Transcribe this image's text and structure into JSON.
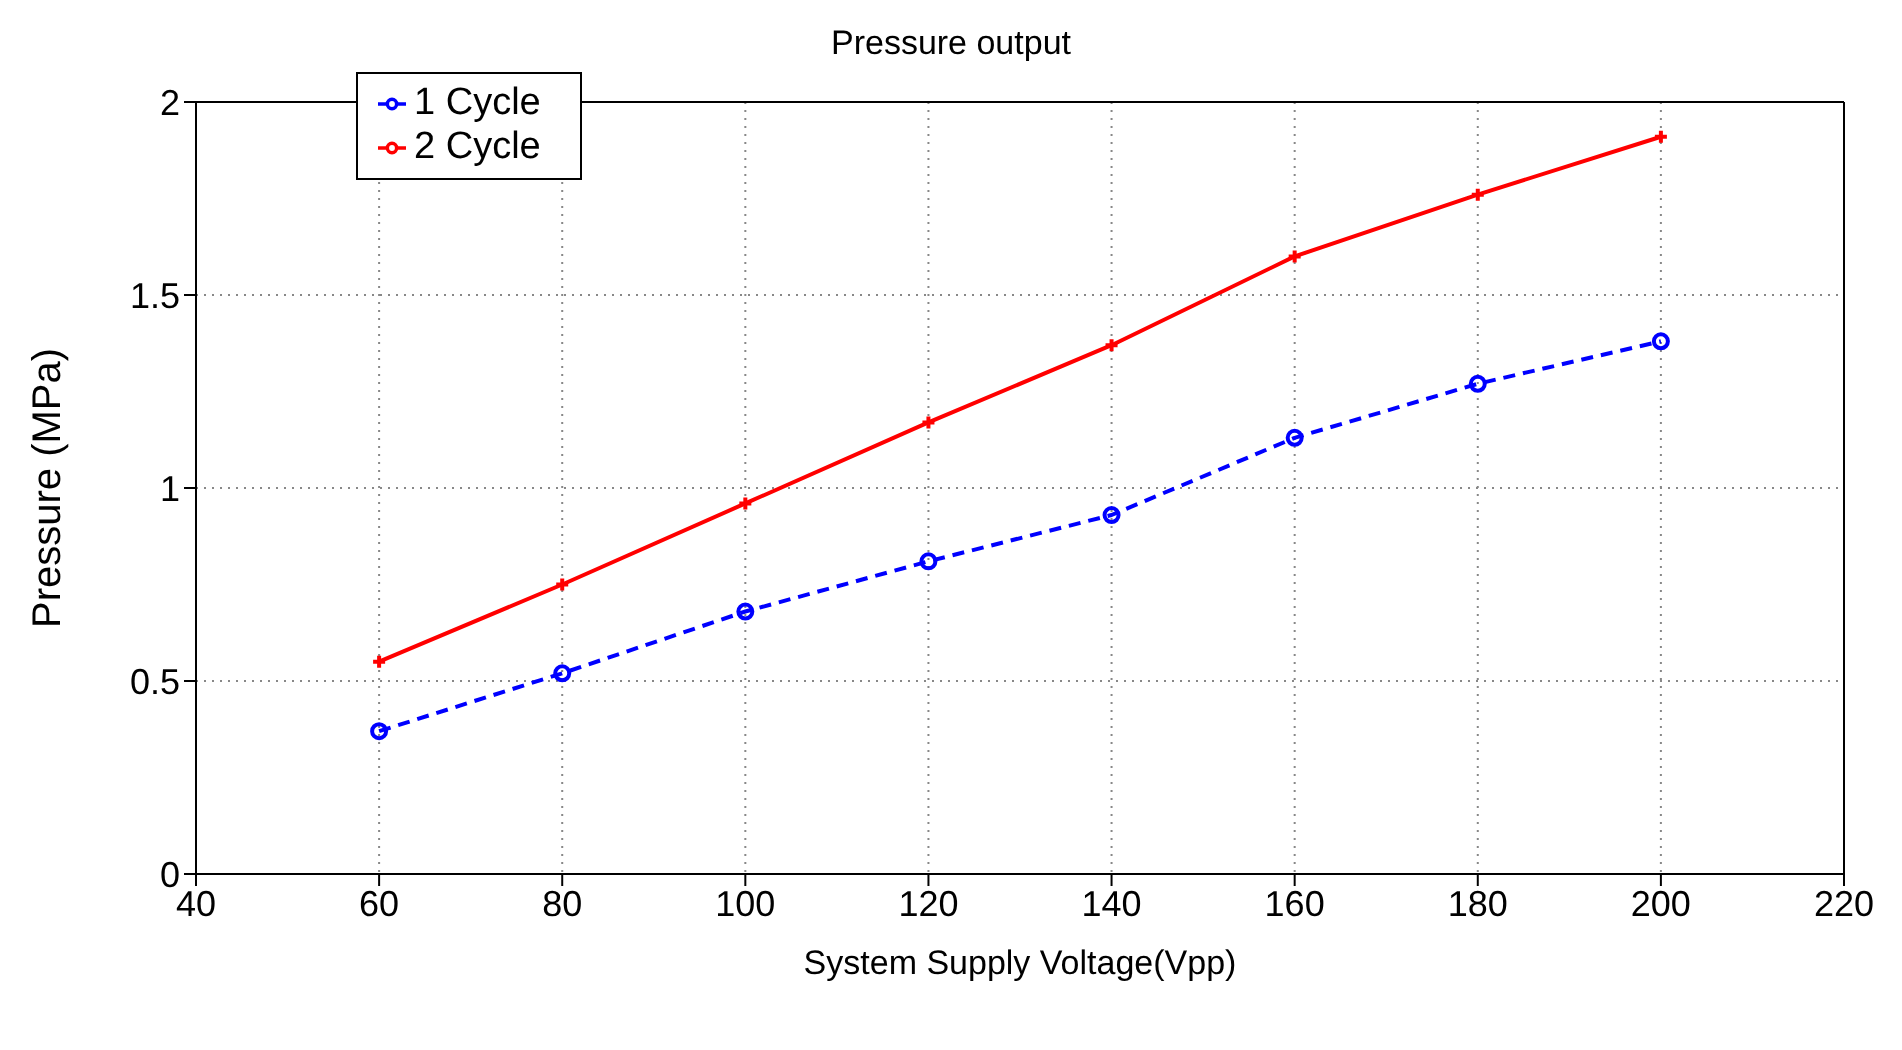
{
  "chart_data": {
    "type": "line",
    "title": "Pressure output",
    "xlabel": "System Supply Voltage(Vpp)",
    "ylabel": "Pressure (MPa)",
    "x": [
      60,
      80,
      100,
      120,
      140,
      160,
      180,
      200
    ],
    "series": [
      {
        "name": "1 Cycle",
        "color": "#0000ff",
        "marker": "circle",
        "line_style": "dashed",
        "values": [
          0.37,
          0.52,
          0.68,
          0.81,
          0.93,
          1.13,
          1.27,
          1.38
        ]
      },
      {
        "name": "2 Cycle",
        "color": "#ff0000",
        "marker": "cross",
        "line_style": "solid",
        "values": [
          0.55,
          0.75,
          0.96,
          1.17,
          1.37,
          1.6,
          1.76,
          1.91
        ]
      }
    ],
    "xlim": [
      40,
      220
    ],
    "xticks": [
      40,
      60,
      80,
      100,
      120,
      140,
      160,
      180,
      200,
      220
    ],
    "ylim": [
      0,
      2
    ],
    "yticks": [
      0,
      0.5,
      1,
      1.5,
      2
    ],
    "grid": true,
    "legend": "top left"
  }
}
